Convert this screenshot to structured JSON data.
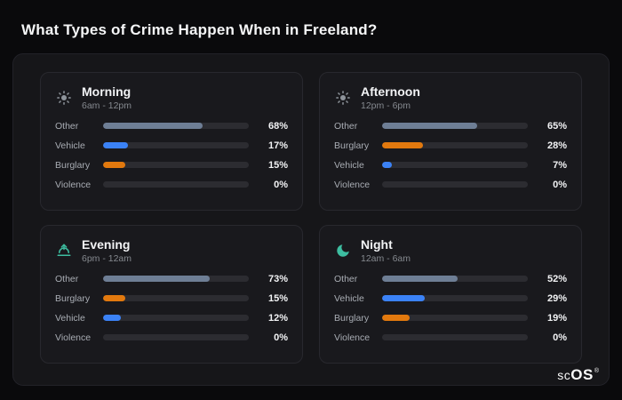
{
  "page": {
    "title": "What Types of Crime Happen When in Freeland?"
  },
  "brand": {
    "prefix": "sc",
    "suffix": "OS",
    "reg": "®"
  },
  "colors": {
    "other": "#6e7e95",
    "vehicle": "#3b82f6",
    "burglary": "#e2790e",
    "track": "#2c2c31"
  },
  "chart_data": [
    {
      "type": "bar",
      "title": "Morning",
      "subtitle": "6am - 12pm",
      "icon": "sun-icon",
      "xlim": [
        0,
        100
      ],
      "categories": [
        "Other",
        "Vehicle",
        "Burglary",
        "Violence"
      ],
      "values": [
        68,
        17,
        15,
        0
      ],
      "rows": [
        {
          "label": "Other",
          "value": 68,
          "pct": "68%",
          "color": "#6e7e95"
        },
        {
          "label": "Vehicle",
          "value": 17,
          "pct": "17%",
          "color": "#3b82f6"
        },
        {
          "label": "Burglary",
          "value": 15,
          "pct": "15%",
          "color": "#e2790e"
        },
        {
          "label": "Violence",
          "value": 0,
          "pct": "0%",
          "color": "#6e7e95"
        }
      ]
    },
    {
      "type": "bar",
      "title": "Afternoon",
      "subtitle": "12pm - 6pm",
      "icon": "sun-icon",
      "xlim": [
        0,
        100
      ],
      "categories": [
        "Other",
        "Burglary",
        "Vehicle",
        "Violence"
      ],
      "values": [
        65,
        28,
        7,
        0
      ],
      "rows": [
        {
          "label": "Other",
          "value": 65,
          "pct": "65%",
          "color": "#6e7e95"
        },
        {
          "label": "Burglary",
          "value": 28,
          "pct": "28%",
          "color": "#e2790e"
        },
        {
          "label": "Vehicle",
          "value": 7,
          "pct": "7%",
          "color": "#3b82f6"
        },
        {
          "label": "Violence",
          "value": 0,
          "pct": "0%",
          "color": "#6e7e95"
        }
      ]
    },
    {
      "type": "bar",
      "title": "Evening",
      "subtitle": "6pm - 12am",
      "icon": "sunset-icon",
      "xlim": [
        0,
        100
      ],
      "categories": [
        "Other",
        "Burglary",
        "Vehicle",
        "Violence"
      ],
      "values": [
        73,
        15,
        12,
        0
      ],
      "rows": [
        {
          "label": "Other",
          "value": 73,
          "pct": "73%",
          "color": "#6e7e95"
        },
        {
          "label": "Burglary",
          "value": 15,
          "pct": "15%",
          "color": "#e2790e"
        },
        {
          "label": "Vehicle",
          "value": 12,
          "pct": "12%",
          "color": "#3b82f6"
        },
        {
          "label": "Violence",
          "value": 0,
          "pct": "0%",
          "color": "#6e7e95"
        }
      ]
    },
    {
      "type": "bar",
      "title": "Night",
      "subtitle": "12am - 6am",
      "icon": "moon-icon",
      "xlim": [
        0,
        100
      ],
      "categories": [
        "Other",
        "Vehicle",
        "Burglary",
        "Violence"
      ],
      "values": [
        52,
        29,
        19,
        0
      ],
      "rows": [
        {
          "label": "Other",
          "value": 52,
          "pct": "52%",
          "color": "#6e7e95"
        },
        {
          "label": "Vehicle",
          "value": 29,
          "pct": "29%",
          "color": "#3b82f6"
        },
        {
          "label": "Burglary",
          "value": 19,
          "pct": "19%",
          "color": "#e2790e"
        },
        {
          "label": "Violence",
          "value": 0,
          "pct": "0%",
          "color": "#6e7e95"
        }
      ]
    }
  ]
}
